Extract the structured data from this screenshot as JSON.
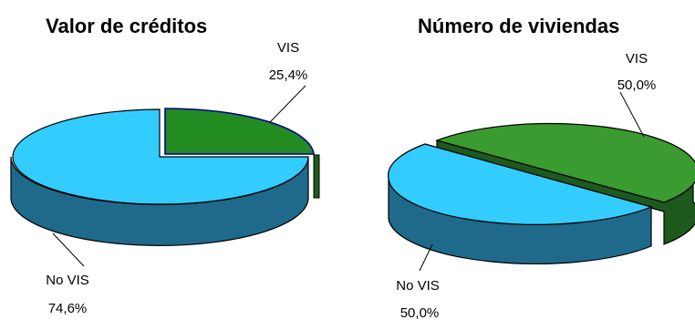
{
  "chart_data": [
    {
      "type": "pie",
      "title": "Valor de créditos",
      "slices": [
        {
          "label": "VIS",
          "value": 25.4,
          "value_text": "25,4%",
          "color": "#228b22"
        },
        {
          "label": "No VIS",
          "value": 74.6,
          "value_text": "74,6%",
          "color": "#33ccff"
        }
      ],
      "style": "3d-exploded"
    },
    {
      "type": "pie",
      "title": "Número de viviendas",
      "slices": [
        {
          "label": "VIS",
          "value": 50.0,
          "value_text": "50,0%",
          "color": "#3a9b30"
        },
        {
          "label": "No VIS",
          "value": 50.0,
          "value_text": "50,0%",
          "color": "#33ccff"
        }
      ],
      "style": "3d-exploded"
    }
  ],
  "colors": {
    "vis_top": "#228b22",
    "vis_side": "#1e5a1e",
    "novis_top": "#33ccff",
    "novis_side": "#1f6a8a",
    "outline": "#000000"
  }
}
